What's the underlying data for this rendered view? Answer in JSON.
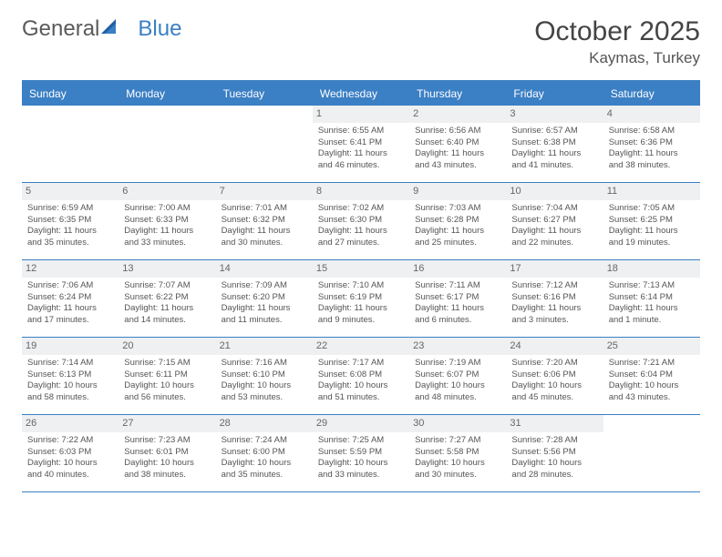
{
  "logo": {
    "part1": "General",
    "part2": "Blue"
  },
  "title": "October 2025",
  "location": "Kaymas, Turkey",
  "colors": {
    "accent": "#3b7fc4",
    "daynum_bg": "#eef0f2",
    "text": "#555555",
    "background": "#ffffff"
  },
  "day_headers": [
    "Sunday",
    "Monday",
    "Tuesday",
    "Wednesday",
    "Thursday",
    "Friday",
    "Saturday"
  ],
  "weeks": [
    [
      {
        "day": "",
        "lines": []
      },
      {
        "day": "",
        "lines": []
      },
      {
        "day": "",
        "lines": []
      },
      {
        "day": "1",
        "lines": [
          "Sunrise: 6:55 AM",
          "Sunset: 6:41 PM",
          "Daylight: 11 hours and 46 minutes."
        ]
      },
      {
        "day": "2",
        "lines": [
          "Sunrise: 6:56 AM",
          "Sunset: 6:40 PM",
          "Daylight: 11 hours and 43 minutes."
        ]
      },
      {
        "day": "3",
        "lines": [
          "Sunrise: 6:57 AM",
          "Sunset: 6:38 PM",
          "Daylight: 11 hours and 41 minutes."
        ]
      },
      {
        "day": "4",
        "lines": [
          "Sunrise: 6:58 AM",
          "Sunset: 6:36 PM",
          "Daylight: 11 hours and 38 minutes."
        ]
      }
    ],
    [
      {
        "day": "5",
        "lines": [
          "Sunrise: 6:59 AM",
          "Sunset: 6:35 PM",
          "Daylight: 11 hours and 35 minutes."
        ]
      },
      {
        "day": "6",
        "lines": [
          "Sunrise: 7:00 AM",
          "Sunset: 6:33 PM",
          "Daylight: 11 hours and 33 minutes."
        ]
      },
      {
        "day": "7",
        "lines": [
          "Sunrise: 7:01 AM",
          "Sunset: 6:32 PM",
          "Daylight: 11 hours and 30 minutes."
        ]
      },
      {
        "day": "8",
        "lines": [
          "Sunrise: 7:02 AM",
          "Sunset: 6:30 PM",
          "Daylight: 11 hours and 27 minutes."
        ]
      },
      {
        "day": "9",
        "lines": [
          "Sunrise: 7:03 AM",
          "Sunset: 6:28 PM",
          "Daylight: 11 hours and 25 minutes."
        ]
      },
      {
        "day": "10",
        "lines": [
          "Sunrise: 7:04 AM",
          "Sunset: 6:27 PM",
          "Daylight: 11 hours and 22 minutes."
        ]
      },
      {
        "day": "11",
        "lines": [
          "Sunrise: 7:05 AM",
          "Sunset: 6:25 PM",
          "Daylight: 11 hours and 19 minutes."
        ]
      }
    ],
    [
      {
        "day": "12",
        "lines": [
          "Sunrise: 7:06 AM",
          "Sunset: 6:24 PM",
          "Daylight: 11 hours and 17 minutes."
        ]
      },
      {
        "day": "13",
        "lines": [
          "Sunrise: 7:07 AM",
          "Sunset: 6:22 PM",
          "Daylight: 11 hours and 14 minutes."
        ]
      },
      {
        "day": "14",
        "lines": [
          "Sunrise: 7:09 AM",
          "Sunset: 6:20 PM",
          "Daylight: 11 hours and 11 minutes."
        ]
      },
      {
        "day": "15",
        "lines": [
          "Sunrise: 7:10 AM",
          "Sunset: 6:19 PM",
          "Daylight: 11 hours and 9 minutes."
        ]
      },
      {
        "day": "16",
        "lines": [
          "Sunrise: 7:11 AM",
          "Sunset: 6:17 PM",
          "Daylight: 11 hours and 6 minutes."
        ]
      },
      {
        "day": "17",
        "lines": [
          "Sunrise: 7:12 AM",
          "Sunset: 6:16 PM",
          "Daylight: 11 hours and 3 minutes."
        ]
      },
      {
        "day": "18",
        "lines": [
          "Sunrise: 7:13 AM",
          "Sunset: 6:14 PM",
          "Daylight: 11 hours and 1 minute."
        ]
      }
    ],
    [
      {
        "day": "19",
        "lines": [
          "Sunrise: 7:14 AM",
          "Sunset: 6:13 PM",
          "Daylight: 10 hours and 58 minutes."
        ]
      },
      {
        "day": "20",
        "lines": [
          "Sunrise: 7:15 AM",
          "Sunset: 6:11 PM",
          "Daylight: 10 hours and 56 minutes."
        ]
      },
      {
        "day": "21",
        "lines": [
          "Sunrise: 7:16 AM",
          "Sunset: 6:10 PM",
          "Daylight: 10 hours and 53 minutes."
        ]
      },
      {
        "day": "22",
        "lines": [
          "Sunrise: 7:17 AM",
          "Sunset: 6:08 PM",
          "Daylight: 10 hours and 51 minutes."
        ]
      },
      {
        "day": "23",
        "lines": [
          "Sunrise: 7:19 AM",
          "Sunset: 6:07 PM",
          "Daylight: 10 hours and 48 minutes."
        ]
      },
      {
        "day": "24",
        "lines": [
          "Sunrise: 7:20 AM",
          "Sunset: 6:06 PM",
          "Daylight: 10 hours and 45 minutes."
        ]
      },
      {
        "day": "25",
        "lines": [
          "Sunrise: 7:21 AM",
          "Sunset: 6:04 PM",
          "Daylight: 10 hours and 43 minutes."
        ]
      }
    ],
    [
      {
        "day": "26",
        "lines": [
          "Sunrise: 7:22 AM",
          "Sunset: 6:03 PM",
          "Daylight: 10 hours and 40 minutes."
        ]
      },
      {
        "day": "27",
        "lines": [
          "Sunrise: 7:23 AM",
          "Sunset: 6:01 PM",
          "Daylight: 10 hours and 38 minutes."
        ]
      },
      {
        "day": "28",
        "lines": [
          "Sunrise: 7:24 AM",
          "Sunset: 6:00 PM",
          "Daylight: 10 hours and 35 minutes."
        ]
      },
      {
        "day": "29",
        "lines": [
          "Sunrise: 7:25 AM",
          "Sunset: 5:59 PM",
          "Daylight: 10 hours and 33 minutes."
        ]
      },
      {
        "day": "30",
        "lines": [
          "Sunrise: 7:27 AM",
          "Sunset: 5:58 PM",
          "Daylight: 10 hours and 30 minutes."
        ]
      },
      {
        "day": "31",
        "lines": [
          "Sunrise: 7:28 AM",
          "Sunset: 5:56 PM",
          "Daylight: 10 hours and 28 minutes."
        ]
      },
      {
        "day": "",
        "lines": []
      }
    ]
  ]
}
